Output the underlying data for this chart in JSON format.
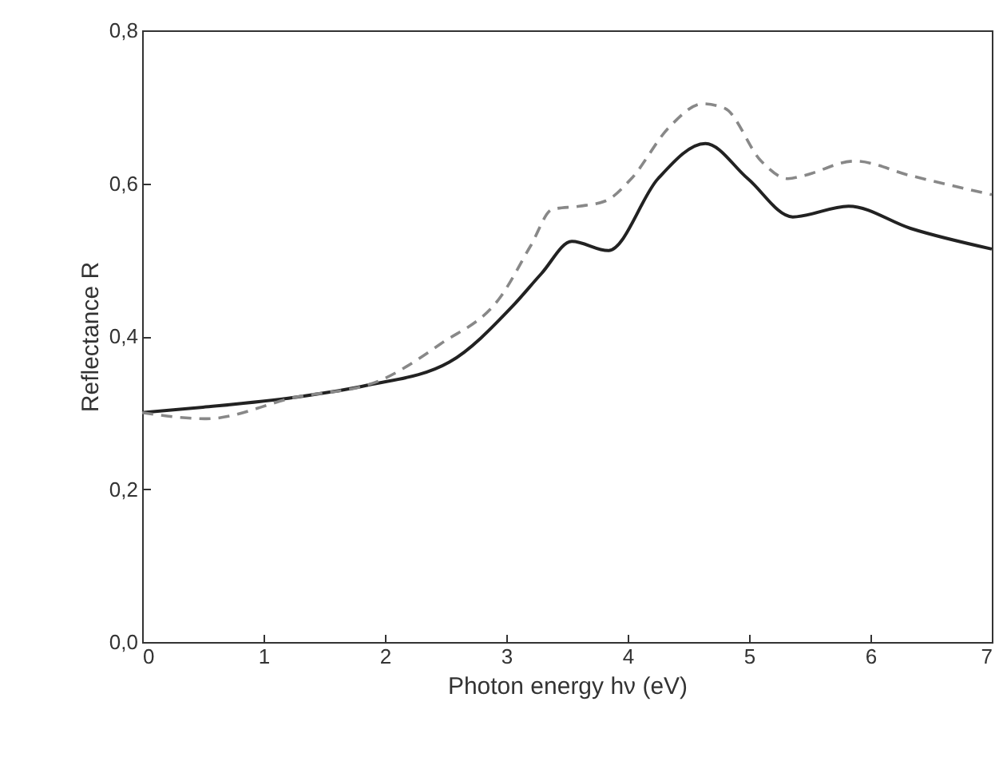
{
  "chart_data": {
    "type": "line",
    "xlabel": "Photon energy hν (eV)",
    "ylabel": "Reflectance R",
    "xlim": [
      0,
      7
    ],
    "ylim": [
      0,
      0.8
    ],
    "xticks": [
      0,
      1,
      2,
      3,
      4,
      5,
      6,
      7
    ],
    "yticks": [
      {
        "value": 0,
        "label": "0,0"
      },
      {
        "value": 0.2,
        "label": "0,2"
      },
      {
        "value": 0.4,
        "label": "0,4"
      },
      {
        "value": 0.6,
        "label": "0,6"
      },
      {
        "value": 0.8,
        "label": "0,8"
      }
    ],
    "grid": false,
    "marker": "none",
    "series": [
      {
        "color": "#222222",
        "line_style": "solid",
        "x": [
          0,
          0.5,
          1.26,
          1.86,
          2.53,
          3.05,
          3.29,
          3.54,
          3.84,
          4.25,
          4.64,
          4.99,
          5.36,
          5.82,
          6.33,
          7
        ],
        "values": [
          0.3,
          0.307,
          0.32,
          0.336,
          0.366,
          0.439,
          0.482,
          0.524,
          0.512,
          0.606,
          0.652,
          0.606,
          0.556,
          0.57,
          0.541,
          0.514
        ]
      },
      {
        "color": "#888888",
        "line_style": "dashed",
        "x": [
          0,
          0.53,
          1.26,
          1.91,
          2.46,
          2.96,
          3.2,
          3.38,
          3.6,
          3.82,
          4.03,
          4.34,
          4.62,
          4.8,
          5.1,
          5.32,
          5.45,
          5.87,
          6.33,
          7
        ],
        "values": [
          0.3,
          0.292,
          0.32,
          0.339,
          0.39,
          0.453,
          0.518,
          0.566,
          0.57,
          0.577,
          0.606,
          0.673,
          0.704,
          0.698,
          0.629,
          0.606,
          0.61,
          0.629,
          0.61,
          0.585
        ]
      }
    ]
  }
}
